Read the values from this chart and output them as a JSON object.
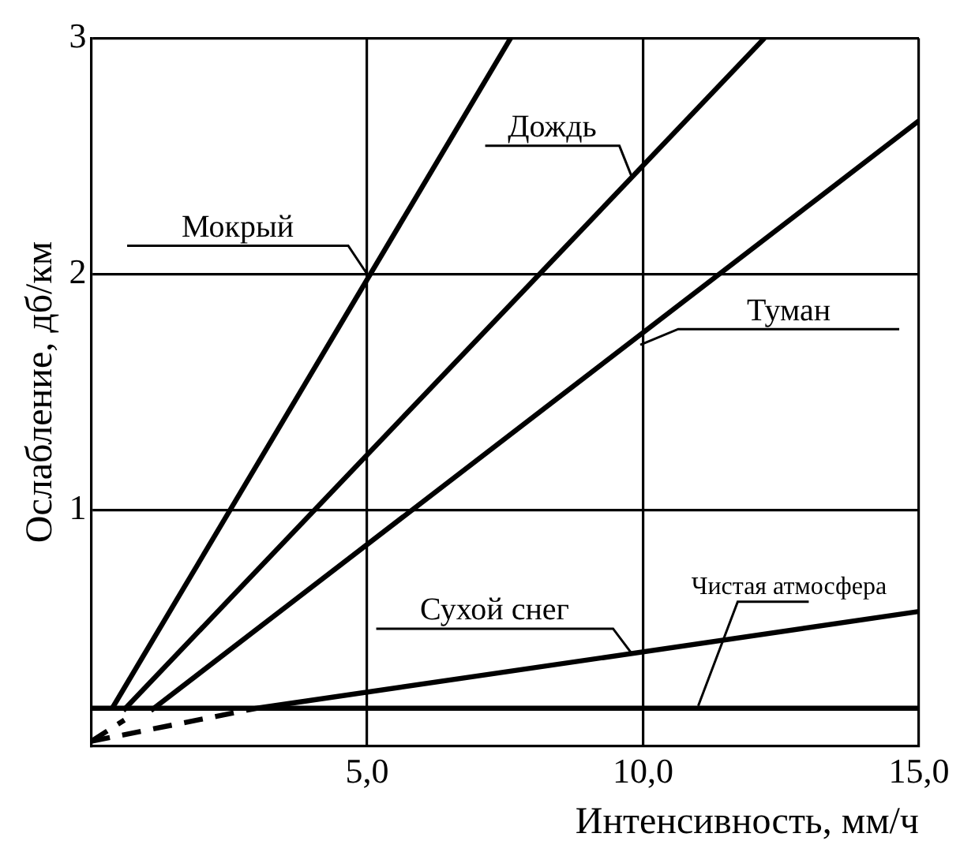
{
  "chart_data": {
    "type": "line",
    "xlabel": "Интенсивность, мм/ч",
    "ylabel": "Ослабление, дб/км",
    "xlim": [
      0,
      15
    ],
    "ylim": [
      0,
      3
    ],
    "xticks": [
      {
        "value": 5,
        "label": "5,0"
      },
      {
        "value": 10,
        "label": "10,0"
      },
      {
        "value": 15,
        "label": "15,0"
      }
    ],
    "yticks": [
      1,
      2,
      3
    ],
    "grid": true,
    "legend": false,
    "marker": "none",
    "line_style": "solid",
    "series": [
      {
        "color": "#000000",
        "x": [
          0.38,
          7.6
        ],
        "values": [
          0.16,
          3
        ]
      },
      {
        "color": "#000000",
        "x": [
          0.58,
          12.2
        ],
        "values": [
          0.15,
          3
        ]
      },
      {
        "color": "#000000",
        "x": [
          1.08,
          15
        ],
        "values": [
          0.15,
          2.65
        ]
      },
      {
        "color": "#000000",
        "x": [
          3,
          15
        ],
        "values": [
          0.16,
          0.57
        ]
      },
      {
        "color": "#000000",
        "x": [
          0,
          15
        ],
        "values": [
          0.16,
          0.16
        ]
      },
      {
        "color": "#000000",
        "x": [
          0,
          0.6
        ],
        "values": [
          0.02,
          0.11
        ],
        "line_style": "dashed"
      },
      {
        "color": "#000000",
        "x": [
          0,
          3
        ],
        "values": [
          0.02,
          0.16
        ],
        "line_style": "dashed"
      }
    ],
    "annotations": [
      {
        "text": "Мокрый",
        "x": 5,
        "y": 2
      },
      {
        "text": "Дождь",
        "x": 9.8,
        "y": 2.41
      },
      {
        "text": "Туман",
        "x": 9.95,
        "y": 1.7
      },
      {
        "text": "Сухой снег",
        "x": 9.8,
        "y": 0.39
      },
      {
        "text": "Чистая атмосфера",
        "x": 11,
        "y": 0.17
      }
    ]
  }
}
